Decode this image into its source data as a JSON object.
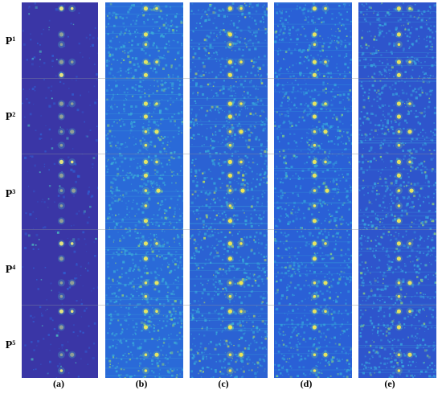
{
  "rows": [
    {
      "id": "P",
      "sub": "1"
    },
    {
      "id": "P",
      "sub": "2"
    },
    {
      "id": "P",
      "sub": "3"
    },
    {
      "id": "P",
      "sub": "4"
    },
    {
      "id": "P",
      "sub": "5"
    }
  ],
  "columns": [
    {
      "label": "(a)",
      "base": "#3a36a6",
      "noise": "#2f5fd2",
      "hot": "#4fd0c0",
      "spot": "#f7f27a"
    },
    {
      "label": "(b)",
      "base": "#2a6ad8",
      "noise": "#3bb0d8",
      "hot": "#8ed37a",
      "spot": "#f7ef5a"
    },
    {
      "label": "(c)",
      "base": "#2b62d3",
      "noise": "#38aed9",
      "hot": "#b9dc5c",
      "spot": "#fff04a"
    },
    {
      "label": "(d)",
      "base": "#2a60d6",
      "noise": "#35a7db",
      "hot": "#7fd08a",
      "spot": "#f9ee55"
    },
    {
      "label": "(e)",
      "base": "#2e55cc",
      "noise": "#38a6de",
      "hot": "#8ccf7e",
      "spot": "#f6ec5a"
    }
  ],
  "colors": {
    "divider": "#8a8f9a",
    "frame": "#1d2f8a"
  }
}
